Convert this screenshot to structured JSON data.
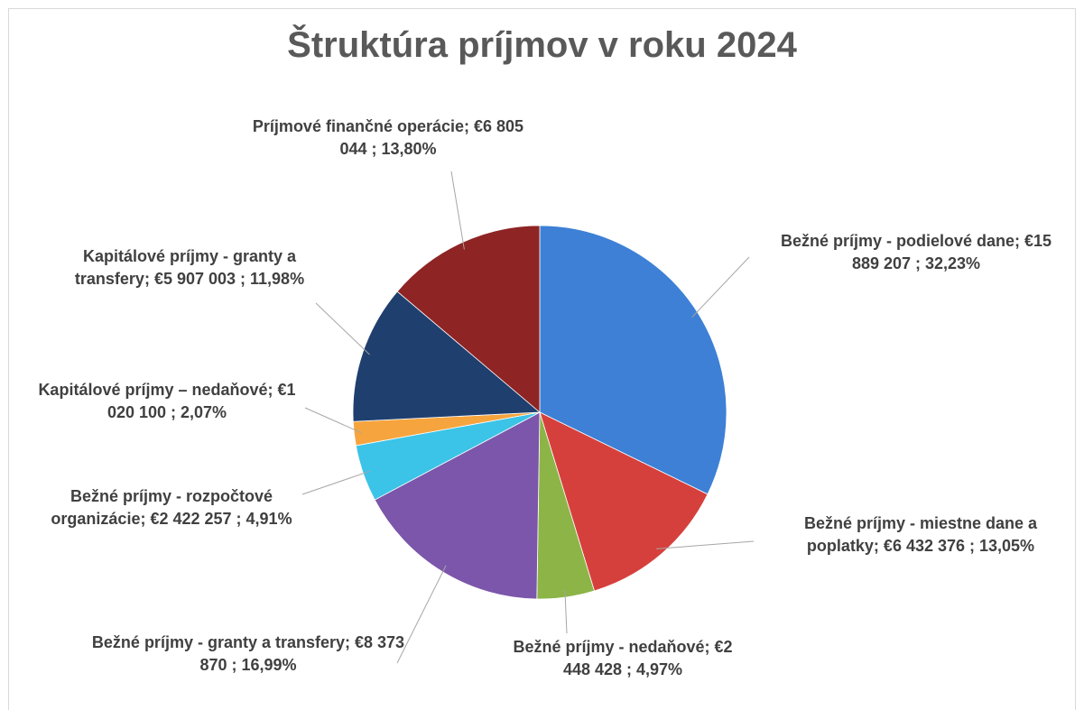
{
  "chart_data": {
    "type": "pie",
    "title": "Štruktúra príjmov v roku 2024",
    "values": [
      15889207,
      6432376,
      2448428,
      8373870,
      2422257,
      1020100,
      5907003,
      6805044
    ],
    "value_labels": [
      "Bežné príjmy - podielové dane; €15 889 207 ; 32,23%",
      "Bežné príjmy - miestne dane a poplatky; €6 432 376 ; 13,05%",
      "Bežné príjmy - nedaňové; €2 448 428 ; 4,97%",
      "Bežné príjmy - granty a transfery; €8 373 870 ; 16,99%",
      "Bežné príjmy - rozpočtové organizácie; €2 422 257 ; 4,91%",
      "Kapitálové príjmy – nedaňové; €1 020 100 ; 2,07%",
      "Kapitálové príjmy - granty a transfery; €5 907 003 ; 11,98%",
      "Príjmové finančné operácie; €6 805 044 ; 13,80%"
    ],
    "colors": [
      "#3d80d6",
      "#d6403c",
      "#8db447",
      "#7b56aa",
      "#3cc3e8",
      "#f6a43e",
      "#1f3f6f",
      "#8e2424"
    ]
  }
}
